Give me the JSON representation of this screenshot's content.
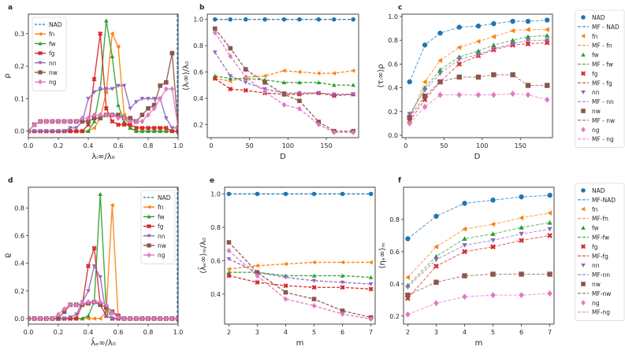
{
  "colors": {
    "NAD": "#1f77b4",
    "fn": "#ff7f0e",
    "fw": "#2ca02c",
    "fg": "#d62728",
    "nn": "#9467bd",
    "nw": "#8c564b",
    "ng": "#e377c2"
  },
  "markers": {
    "NAD": "circle",
    "fn": "triangle-left",
    "fw": "triangle-up",
    "fg": "x",
    "nn": "triangle-down",
    "nw": "square",
    "ng": "diamond"
  },
  "chart_data": [
    {
      "panel": "a",
      "type": "line",
      "xlabel": "λᵢ∞/λ₀",
      "ylabel": "ρ",
      "xlim": [
        0,
        1.0
      ],
      "ylim": [
        -0.02,
        0.36
      ],
      "xticks": [
        0.0,
        0.2,
        0.4,
        0.6,
        0.8,
        1.0
      ],
      "yticks": [
        0.0,
        0.1,
        0.2,
        0.3
      ],
      "legend": [
        "NAD",
        "fn",
        "fw",
        "fg",
        "nn",
        "nw",
        "ng"
      ],
      "legend_position": "top-left",
      "vline": {
        "series": "NAD",
        "x": 0.995
      },
      "x": [
        0.0,
        0.04,
        0.08,
        0.12,
        0.16,
        0.2,
        0.24,
        0.28,
        0.32,
        0.36,
        0.4,
        0.44,
        0.48,
        0.52,
        0.56,
        0.6,
        0.64,
        0.68,
        0.72,
        0.76,
        0.8,
        0.84,
        0.88,
        0.92,
        0.96,
        1.0
      ],
      "series": [
        {
          "name": "fn",
          "values": [
            0,
            0,
            0,
            0,
            0,
            0,
            0,
            0,
            0,
            0,
            0,
            0.01,
            0.04,
            0.12,
            0.3,
            0.26,
            0.05,
            0.01,
            0,
            0,
            0,
            0,
            0,
            0,
            0,
            0
          ]
        },
        {
          "name": "fw",
          "values": [
            0,
            0,
            0,
            0,
            0,
            0,
            0,
            0,
            0,
            0,
            0,
            0.03,
            0.13,
            0.34,
            0.23,
            0.08,
            0.03,
            0.01,
            0,
            0,
            0,
            0,
            0,
            0,
            0,
            0
          ]
        },
        {
          "name": "fg",
          "values": [
            0,
            0,
            0,
            0,
            0,
            0,
            0,
            0,
            0,
            0,
            0.02,
            0.16,
            0.3,
            0.07,
            0.03,
            0.02,
            0.02,
            0.02,
            0.01,
            0.01,
            0.01,
            0.01,
            0.01,
            0.01,
            0,
            0
          ]
        },
        {
          "name": "nn",
          "values": [
            0,
            0,
            0,
            0,
            0,
            0,
            0,
            0.01,
            0.01,
            0.03,
            0.1,
            0.12,
            0.13,
            0.13,
            0.13,
            0.14,
            0.14,
            0.07,
            0.09,
            0.1,
            0.1,
            0.1,
            0.1,
            0.04,
            0.01,
            0.01
          ]
        },
        {
          "name": "nw",
          "values": [
            0,
            0.02,
            0.03,
            0.03,
            0.03,
            0.03,
            0.03,
            0.03,
            0.03,
            0.03,
            0.03,
            0.04,
            0.04,
            0.05,
            0.05,
            0.05,
            0.04,
            0.04,
            0.03,
            0.05,
            0.07,
            0.08,
            0.14,
            0.15,
            0.24,
            0.01
          ]
        },
        {
          "name": "ng",
          "values": [
            0,
            0.02,
            0.03,
            0.03,
            0.03,
            0.03,
            0.03,
            0.03,
            0.03,
            0.04,
            0.04,
            0.05,
            0.05,
            0.05,
            0.05,
            0.04,
            0.04,
            0.03,
            0.03,
            0.03,
            0.05,
            0.07,
            0.1,
            0.13,
            0.13,
            0.01
          ]
        }
      ]
    },
    {
      "panel": "b",
      "type": "line",
      "xlabel": "D",
      "ylabel": "⟨λᵢ∞⟩/λ₀",
      "xlim": [
        -5,
        192
      ],
      "ylim": [
        0.1,
        1.04
      ],
      "xticks": [
        0,
        50,
        100,
        150
      ],
      "yticks": [
        0.2,
        0.4,
        0.6,
        0.8,
        1.0
      ],
      "x": [
        5,
        25,
        45,
        70,
        95,
        115,
        140,
        160,
        185
      ],
      "series": [
        {
          "name": "NAD",
          "values": [
            1.0,
            1.0,
            1.0,
            1.0,
            1.0,
            1.0,
            1.0,
            1.0,
            1.0
          ]
        },
        {
          "name": "fn",
          "values": [
            0.55,
            0.53,
            0.56,
            0.57,
            0.61,
            0.6,
            0.59,
            0.59,
            0.61
          ]
        },
        {
          "name": "fw",
          "values": [
            0.57,
            0.55,
            0.55,
            0.54,
            0.52,
            0.52,
            0.52,
            0.5,
            0.5
          ]
        },
        {
          "name": "fg",
          "values": [
            0.55,
            0.47,
            0.46,
            0.44,
            0.43,
            0.43,
            0.44,
            0.42,
            0.43
          ]
        },
        {
          "name": "nn",
          "values": [
            0.75,
            0.57,
            0.52,
            0.47,
            0.44,
            0.44,
            0.44,
            0.43,
            0.43
          ]
        },
        {
          "name": "nw",
          "values": [
            0.93,
            0.78,
            0.62,
            0.52,
            0.43,
            0.38,
            0.22,
            0.15,
            0.15
          ]
        },
        {
          "name": "ng",
          "values": [
            0.9,
            0.72,
            0.56,
            0.45,
            0.35,
            0.32,
            0.2,
            0.14,
            0.14
          ]
        }
      ]
    },
    {
      "panel": "c",
      "type": "line",
      "xlabel": "D",
      "ylabel": "⟨τᵢ∞⟩ρ",
      "xlim": [
        -5,
        192
      ],
      "ylim": [
        -0.02,
        1.02
      ],
      "xticks": [
        0,
        50,
        100,
        150
      ],
      "yticks": [
        0.0,
        0.2,
        0.4,
        0.6,
        0.8,
        1.0
      ],
      "legend": [
        "NAD",
        "MF - NAD",
        "fn",
        "MF - fn",
        "fw",
        "MF - fw",
        "fg",
        "MF - fg",
        "nn",
        "MF - nn",
        "nw",
        "MF - nw",
        "ng",
        "MF - ng"
      ],
      "legend_position": "outside-right",
      "x": [
        5,
        25,
        45,
        70,
        95,
        115,
        140,
        160,
        185
      ],
      "series": [
        {
          "name": "NAD",
          "values": [
            0.45,
            0.76,
            0.86,
            0.91,
            0.92,
            0.94,
            0.96,
            0.96,
            0.97
          ]
        },
        {
          "name": "fn",
          "values": [
            0.14,
            0.45,
            0.63,
            0.74,
            0.79,
            0.83,
            0.88,
            0.89,
            0.89
          ]
        },
        {
          "name": "fw",
          "values": [
            0.16,
            0.4,
            0.55,
            0.66,
            0.71,
            0.76,
            0.8,
            0.83,
            0.84
          ]
        },
        {
          "name": "fg",
          "values": [
            0.12,
            0.3,
            0.45,
            0.6,
            0.67,
            0.72,
            0.76,
            0.77,
            0.78
          ]
        },
        {
          "name": "nn",
          "values": [
            0.18,
            0.38,
            0.52,
            0.64,
            0.68,
            0.73,
            0.77,
            0.8,
            0.8
          ]
        },
        {
          "name": "nw",
          "values": [
            0.15,
            0.33,
            0.45,
            0.49,
            0.49,
            0.51,
            0.51,
            0.42,
            0.42
          ]
        },
        {
          "name": "ng",
          "values": [
            0.1,
            0.24,
            0.34,
            0.34,
            0.34,
            0.34,
            0.35,
            0.34,
            0.3
          ]
        }
      ]
    },
    {
      "panel": "d",
      "type": "line",
      "xlabel": "λ̄ₑ∞/λ₀",
      "ylabel": "ϱ",
      "xlim": [
        0,
        1.0
      ],
      "ylim": [
        -0.04,
        0.95
      ],
      "xticks": [
        0.0,
        0.2,
        0.4,
        0.6,
        0.8,
        1.0
      ],
      "yticks": [
        0.0,
        0.2,
        0.4,
        0.6,
        0.8
      ],
      "legend": [
        "NAD",
        "fn",
        "fw",
        "fg",
        "nn",
        "nw",
        "ng"
      ],
      "legend_position": "top-right",
      "vline": {
        "series": "NAD",
        "x": 0.995
      },
      "x": [
        0.0,
        0.04,
        0.08,
        0.12,
        0.16,
        0.2,
        0.24,
        0.28,
        0.32,
        0.36,
        0.4,
        0.44,
        0.48,
        0.52,
        0.56,
        0.6,
        0.64,
        0.68,
        0.72,
        0.76,
        0.8,
        0.84,
        0.88,
        0.92,
        0.96,
        1.0
      ],
      "series": [
        {
          "name": "fn",
          "values": [
            0,
            0,
            0,
            0,
            0,
            0,
            0,
            0,
            0,
            0,
            0,
            0,
            0,
            0.05,
            0.82,
            0,
            0,
            0,
            0,
            0,
            0,
            0,
            0,
            0,
            0,
            0
          ]
        },
        {
          "name": "fw",
          "values": [
            0,
            0,
            0,
            0,
            0,
            0,
            0,
            0,
            0,
            0,
            0.02,
            0.12,
            0.9,
            0.08,
            0,
            0,
            0,
            0,
            0,
            0,
            0,
            0,
            0,
            0,
            0,
            0
          ]
        },
        {
          "name": "fg",
          "values": [
            0,
            0,
            0,
            0,
            0,
            0,
            0,
            0,
            0,
            0.1,
            0.38,
            0.51,
            0.1,
            0.02,
            0,
            0,
            0,
            0,
            0,
            0,
            0,
            0,
            0,
            0,
            0,
            0
          ]
        },
        {
          "name": "nn",
          "values": [
            0,
            0,
            0,
            0,
            0,
            0,
            0,
            0.01,
            0.03,
            0.12,
            0.2,
            0.38,
            0.3,
            0.02,
            0,
            0,
            0,
            0,
            0,
            0,
            0,
            0,
            0,
            0,
            0,
            0
          ]
        },
        {
          "name": "nw",
          "values": [
            0,
            0,
            0,
            0,
            0,
            0,
            0.05,
            0.1,
            0.1,
            0.1,
            0.11,
            0.12,
            0.1,
            0.08,
            0.05,
            0.02,
            0,
            0,
            0,
            0,
            0,
            0,
            0,
            0,
            0,
            0
          ]
        },
        {
          "name": "ng",
          "values": [
            0,
            0,
            0,
            0,
            0,
            0.03,
            0.07,
            0.1,
            0.1,
            0.11,
            0.12,
            0.12,
            0.12,
            0.1,
            0.04,
            0.01,
            0,
            0,
            0,
            0,
            0,
            0,
            0,
            0,
            0,
            0
          ]
        }
      ]
    },
    {
      "panel": "e",
      "type": "line",
      "xlabel": "m",
      "ylabel": "⟨λ̄ₑ∞⟩ₘ/λ₀",
      "xlim": [
        1.85,
        7.15
      ],
      "ylim": [
        0.22,
        1.04
      ],
      "xticks": [
        2,
        3,
        4,
        5,
        6,
        7
      ],
      "yticks": [
        0.4,
        0.6,
        0.8,
        1.0
      ],
      "x": [
        2,
        3,
        4,
        5,
        6,
        7
      ],
      "series": [
        {
          "name": "NAD",
          "values": [
            1.0,
            1.0,
            1.0,
            1.0,
            1.0,
            1.0
          ]
        },
        {
          "name": "fn",
          "values": [
            0.55,
            0.57,
            0.58,
            0.59,
            0.59,
            0.59
          ]
        },
        {
          "name": "fw",
          "values": [
            0.53,
            0.53,
            0.51,
            0.51,
            0.51,
            0.5
          ]
        },
        {
          "name": "fg",
          "values": [
            0.51,
            0.47,
            0.45,
            0.44,
            0.44,
            0.43
          ]
        },
        {
          "name": "nn",
          "values": [
            0.61,
            0.53,
            0.5,
            0.48,
            0.47,
            0.46
          ]
        },
        {
          "name": "nw",
          "values": [
            0.71,
            0.53,
            0.41,
            0.37,
            0.3,
            0.26
          ]
        },
        {
          "name": "ng",
          "values": [
            0.66,
            0.51,
            0.37,
            0.33,
            0.28,
            0.25
          ]
        }
      ]
    },
    {
      "panel": "f",
      "type": "line",
      "xlabel": "m",
      "ylabel": "⟨ηₑ∞⟩ₘ",
      "xlim": [
        1.85,
        7.15
      ],
      "ylim": [
        0.15,
        1.0
      ],
      "xticks": [
        2,
        3,
        4,
        5,
        6,
        7
      ],
      "yticks": [
        0.2,
        0.4,
        0.6,
        0.8
      ],
      "legend": [
        "NAD",
        "MF-NAD",
        "fn",
        "MF-fn",
        "fw",
        "MF-fw",
        "fg",
        "MF-fg",
        "nn",
        "MF-nn",
        "nw",
        "MF-nw",
        "ng",
        "MF-ng"
      ],
      "legend_position": "outside-right",
      "x": [
        2,
        3,
        4,
        5,
        6,
        7
      ],
      "series": [
        {
          "name": "NAD",
          "values": [
            0.68,
            0.82,
            0.9,
            0.92,
            0.94,
            0.95
          ]
        },
        {
          "name": "fn",
          "values": [
            0.44,
            0.63,
            0.74,
            0.77,
            0.81,
            0.84
          ]
        },
        {
          "name": "fw",
          "values": [
            0.39,
            0.57,
            0.68,
            0.71,
            0.75,
            0.78
          ]
        },
        {
          "name": "fg",
          "values": [
            0.31,
            0.51,
            0.6,
            0.63,
            0.67,
            0.7
          ]
        },
        {
          "name": "nn",
          "values": [
            0.38,
            0.55,
            0.64,
            0.67,
            0.71,
            0.74
          ]
        },
        {
          "name": "nw",
          "values": [
            0.33,
            0.41,
            0.45,
            0.46,
            0.46,
            0.46
          ]
        },
        {
          "name": "ng",
          "values": [
            0.21,
            0.28,
            0.32,
            0.33,
            0.33,
            0.34
          ]
        }
      ]
    }
  ]
}
